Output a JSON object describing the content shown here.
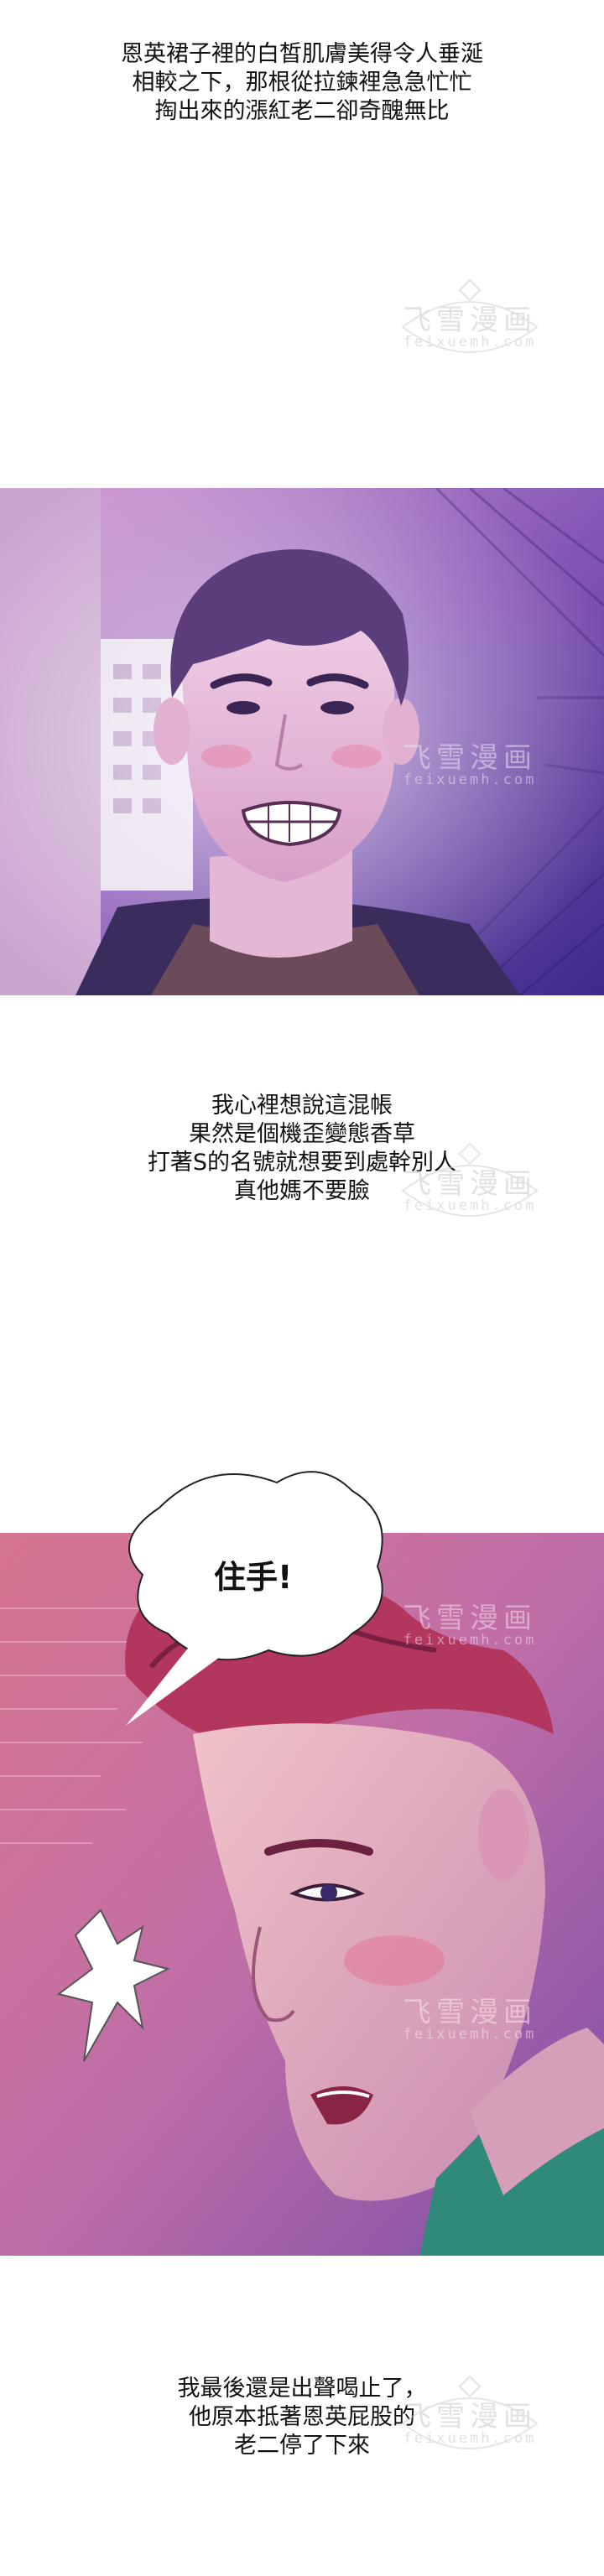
{
  "captions": {
    "c1": [
      "恩英裙子裡的白皙肌膚美得令人垂涎",
      "相較之下，那根從拉鍊裡急急忙忙",
      "掏出來的漲紅老二卻奇醜無比"
    ],
    "c2": [
      "我心裡想說這混帳",
      "果然是個機歪變態香草",
      "打著S的名號就想要到處幹別人",
      "真他媽不要臉"
    ],
    "c3": [
      "我最後還是出聲喝止了，",
      "他原本抵著恩英屁股的",
      "老二停了下來"
    ]
  },
  "speech": {
    "stop": "住手!"
  },
  "watermark": {
    "title": "飞雪漫画",
    "url": "feixuemh.com"
  },
  "colors": {
    "panel_purple": "#7b4aa8",
    "panel_pink": "#c0407a"
  }
}
